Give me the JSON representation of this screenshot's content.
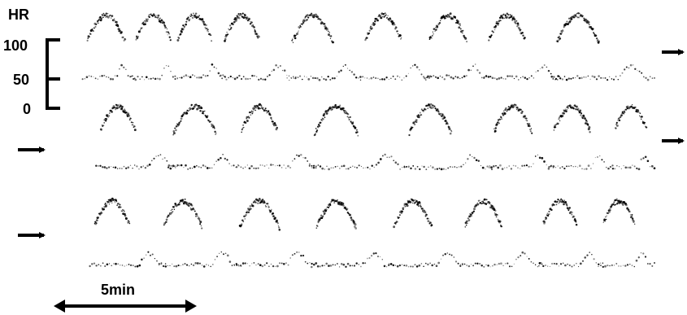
{
  "colors": {
    "ink": "#000000",
    "background": "#ffffff"
  },
  "chart_data": {
    "type": "scatter",
    "title": "",
    "ylabel": "HR",
    "y_ticks": [
      100,
      50,
      0
    ],
    "scale_bar_label": "5min",
    "grid": false,
    "legend": "none",
    "rows": [
      {
        "name": "",
        "episodes": [
          {
            "t": 0.07,
            "upper": 0.62,
            "lower": 0.27
          },
          {
            "t": 0.15,
            "upper": 0.52,
            "lower": 0.24
          },
          {
            "t": 0.22,
            "upper": 0.48,
            "lower": 0.3
          },
          {
            "t": 0.3,
            "upper": 0.5,
            "lower": 0.25
          },
          {
            "t": 0.42,
            "upper": 0.74,
            "lower": 0.22
          },
          {
            "t": 0.54,
            "upper": 0.56,
            "lower": 0.22
          },
          {
            "t": 0.65,
            "upper": 0.6,
            "lower": 0.28
          },
          {
            "t": 0.75,
            "upper": 0.58,
            "lower": 0.25
          },
          {
            "t": 0.87,
            "upper": 0.78,
            "lower": 0.24
          }
        ]
      },
      {
        "name": "",
        "episodes": [
          {
            "t": 0.09,
            "upper": 0.5,
            "lower": 0.26
          },
          {
            "t": 0.22,
            "upper": 0.8,
            "lower": 0.26
          },
          {
            "t": 0.33,
            "upper": 0.56,
            "lower": 0.28
          },
          {
            "t": 0.46,
            "upper": 0.82,
            "lower": 0.24
          },
          {
            "t": 0.62,
            "upper": 0.78,
            "lower": 0.22
          },
          {
            "t": 0.76,
            "upper": 0.62,
            "lower": 0.25
          },
          {
            "t": 0.86,
            "upper": 0.56,
            "lower": 0.24
          },
          {
            "t": 0.96,
            "upper": 0.4,
            "lower": 0.26
          }
        ]
      },
      {
        "name": "",
        "episodes": [
          {
            "t": 0.08,
            "upper": 0.52,
            "lower": 0.26
          },
          {
            "t": 0.2,
            "upper": 0.62,
            "lower": 0.26
          },
          {
            "t": 0.33,
            "upper": 0.7,
            "lower": 0.28
          },
          {
            "t": 0.46,
            "upper": 0.68,
            "lower": 0.24
          },
          {
            "t": 0.59,
            "upper": 0.62,
            "lower": 0.26
          },
          {
            "t": 0.71,
            "upper": 0.58,
            "lower": 0.25
          },
          {
            "t": 0.84,
            "upper": 0.45,
            "lower": 0.27
          },
          {
            "t": 0.94,
            "upper": 0.4,
            "lower": 0.25
          }
        ]
      }
    ]
  }
}
